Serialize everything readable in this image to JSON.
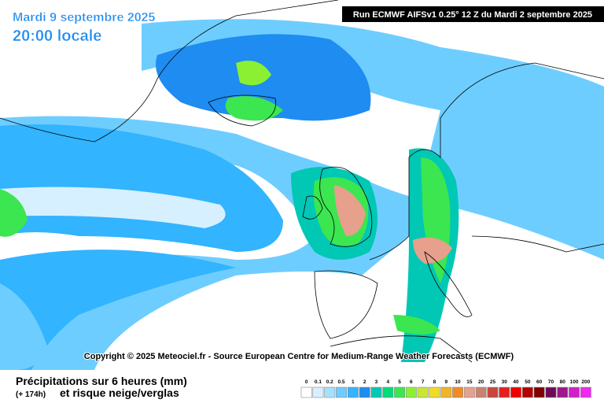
{
  "header": {
    "date": "Mardi 9 septembre 2025",
    "time": "20:00 locale",
    "run": "Run ECMWF AIFSv1 0.25° 12 Z du Mardi 2 septembre 2025"
  },
  "copyright": "Copyright © 2025 Meteociel.fr - Source European Centre for Medium-Range Weather Forecasts (ECMWF)",
  "footer": {
    "title": "Précipitations sur 6 heures (mm)",
    "lead": "(+ 174h)",
    "subtitle": "et risque neige/verglas"
  },
  "legend": {
    "items": [
      {
        "label": "0",
        "color": "#ffffff"
      },
      {
        "label": "0.1",
        "color": "#d7f0ff"
      },
      {
        "label": "0.2",
        "color": "#a5e1ff"
      },
      {
        "label": "0.5",
        "color": "#6ecdff"
      },
      {
        "label": "1",
        "color": "#32b4ff"
      },
      {
        "label": "2",
        "color": "#1e8cf0"
      },
      {
        "label": "3",
        "color": "#00c8b4"
      },
      {
        "label": "4",
        "color": "#00dc78"
      },
      {
        "label": "5",
        "color": "#3ce650"
      },
      {
        "label": "6",
        "color": "#8cf032"
      },
      {
        "label": "7",
        "color": "#c8e632"
      },
      {
        "label": "8",
        "color": "#f0dc28"
      },
      {
        "label": "9",
        "color": "#f0b428"
      },
      {
        "label": "10",
        "color": "#f08c28"
      },
      {
        "label": "15",
        "color": "#e6a08c"
      },
      {
        "label": "20",
        "color": "#c8826e"
      },
      {
        "label": "25",
        "color": "#c8463c"
      },
      {
        "label": "30",
        "color": "#e61e1e"
      },
      {
        "label": "40",
        "color": "#f00000"
      },
      {
        "label": "50",
        "color": "#b40000"
      },
      {
        "label": "60",
        "color": "#820000"
      },
      {
        "label": "70",
        "color": "#6e0a5a"
      },
      {
        "label": "80",
        "color": "#a0148c"
      },
      {
        "label": "100",
        "color": "#d21ec8"
      },
      {
        "label": "200",
        "color": "#f028f0"
      }
    ]
  }
}
